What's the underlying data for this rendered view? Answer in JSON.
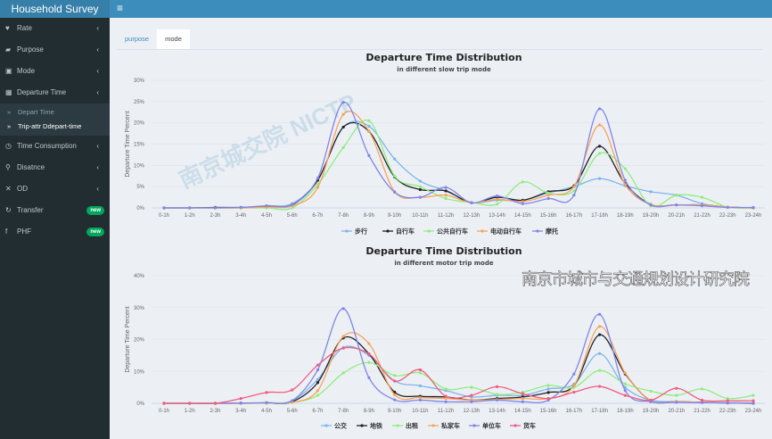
{
  "app": {
    "title": "Household Survey"
  },
  "sidebar": {
    "items": [
      {
        "label": "Rate",
        "icon": "heartbeat-icon",
        "glyph": "♥",
        "chevron": true
      },
      {
        "label": "Purpose",
        "icon": "briefcase-icon",
        "glyph": "▰",
        "chevron": true
      },
      {
        "label": "Mode",
        "icon": "bus-icon",
        "glyph": "▣",
        "chevron": true
      },
      {
        "label": "Departure Time",
        "icon": "calendar-icon",
        "glyph": "▦",
        "chevron": true,
        "expanded": true,
        "children": [
          {
            "label": "Depart Time",
            "active": false
          },
          {
            "label": "Trip-attr Ddepart-time",
            "active": true
          }
        ]
      },
      {
        "label": "Time Consumption",
        "icon": "clock-icon",
        "glyph": "◷",
        "chevron": true
      },
      {
        "label": "Disatnce",
        "icon": "map-marker-icon",
        "glyph": "⚲",
        "chevron": true
      },
      {
        "label": "OD",
        "icon": "arrows-icon",
        "glyph": "✕",
        "chevron": true
      },
      {
        "label": "Transfer",
        "icon": "refresh-icon",
        "glyph": "↻",
        "badge": "new"
      },
      {
        "label": "PHF",
        "icon": "facebook-icon",
        "glyph": "f",
        "badge": "new"
      }
    ]
  },
  "tabs": [
    {
      "label": "purpose",
      "active": false
    },
    {
      "label": "mode",
      "active": true
    }
  ],
  "watermarks": {
    "w1": "南京城交院 NICTP",
    "w2": "南京市城市与交通规划设计研究院"
  },
  "colors": {
    "blue": "#7cb5ec",
    "black": "#222222",
    "green": "#90ed7d",
    "orange": "#f7a35c",
    "purple": "#8085e9",
    "red": "#f15c80"
  },
  "chart_data": [
    {
      "type": "line",
      "title": "Departure Time Distribution",
      "subtitle": "in different slow trip mode",
      "ylabel": "Departure Time Percent",
      "ylim": [
        0,
        30
      ],
      "yticks": [
        "0%",
        "5%",
        "10%",
        "15%",
        "20%",
        "25%",
        "30%"
      ],
      "legend": "bottom",
      "categories": [
        "0-1h",
        "1-2h",
        "2-3h",
        "3-4h",
        "4-5h",
        "5-6h",
        "6-7h",
        "7-8h",
        "8-9h",
        "9-10h",
        "10-11h",
        "11-12h",
        "12-13h",
        "13-14h",
        "14-15h",
        "15-16h",
        "16-17h",
        "17-18h",
        "18-19h",
        "19-20h",
        "20-21h",
        "21-22h",
        "22-23h",
        "23-24h"
      ],
      "series": [
        {
          "name": "步行",
          "color": "#7cb5ec",
          "values": [
            0,
            0,
            0.1,
            0.1,
            0.5,
            1,
            6.5,
            19,
            19.2,
            11.5,
            6.3,
            4,
            1.3,
            1.8,
            1.8,
            3.5,
            5,
            6.9,
            5.2,
            3.8,
            3,
            1,
            0.2,
            0
          ]
        },
        {
          "name": "自行车",
          "color": "#222222",
          "values": [
            0,
            0,
            0.1,
            0.1,
            0.3,
            0.7,
            6.5,
            19,
            18,
            7.3,
            4.3,
            4,
            1.2,
            2.5,
            1.8,
            3.8,
            5.2,
            14.5,
            5.7,
            0.8,
            0.7,
            0.7,
            0.2,
            0
          ]
        },
        {
          "name": "公共自行车",
          "color": "#90ed7d",
          "values": [
            0,
            0,
            0,
            0,
            0,
            0,
            5.5,
            14.2,
            20.5,
            7.5,
            5,
            2.2,
            1.3,
            0.9,
            6.1,
            3.5,
            4,
            12.8,
            9.2,
            0.5,
            3,
            2.5,
            0.2,
            0
          ]
        },
        {
          "name": "电动自行车",
          "color": "#f7a35c",
          "values": [
            0,
            0,
            0,
            0,
            0.2,
            0.5,
            4.8,
            22,
            18,
            3.8,
            2.5,
            3,
            1.2,
            2,
            1.5,
            3,
            5,
            19.5,
            5.5,
            0.8,
            0.7,
            0.7,
            0.2,
            0
          ]
        },
        {
          "name": "摩托",
          "color": "#8085e9",
          "values": [
            0,
            0,
            0,
            0.1,
            0.5,
            0.8,
            7,
            24.8,
            12.3,
            3.7,
            2.5,
            4.8,
            1.2,
            2.8,
            1,
            2.2,
            3,
            23.3,
            6.5,
            0.7,
            0.7,
            0.5,
            0.1,
            0.1
          ]
        }
      ]
    },
    {
      "type": "line",
      "title": "Departure Time Distribution",
      "subtitle": "in different motor trip mode",
      "ylabel": "Departure Time Percent",
      "ylim": [
        0,
        40
      ],
      "yticks": [
        "0%",
        "10%",
        "20%",
        "30%",
        "40%"
      ],
      "legend": "bottom",
      "categories": [
        "0-1h",
        "1-2h",
        "2-3h",
        "3-4h",
        "4-5h",
        "5-6h",
        "6-7h",
        "7-8h",
        "8-9h",
        "9-10h",
        "10-11h",
        "11-12h",
        "12-13h",
        "13-14h",
        "14-15h",
        "15-16h",
        "16-17h",
        "17-18h",
        "18-19h",
        "19-20h",
        "20-21h",
        "21-22h",
        "22-23h",
        "23-24h"
      ],
      "series": [
        {
          "name": "公交",
          "color": "#7cb5ec",
          "values": [
            0,
            0,
            0,
            0.1,
            0.2,
            0.8,
            7.5,
            17.5,
            15,
            7,
            5.5,
            4,
            2,
            2.5,
            2.5,
            4.5,
            6,
            15.6,
            5,
            1,
            0.5,
            0.3,
            0.2,
            0.1
          ]
        },
        {
          "name": "地铁",
          "color": "#222222",
          "values": [
            0,
            0,
            0,
            0,
            0.1,
            0.5,
            6.5,
            20.5,
            15.5,
            3.5,
            2.2,
            2,
            1,
            1.5,
            2,
            3.4,
            5.5,
            21.5,
            9.2,
            0.8,
            0.5,
            0.3,
            0.1,
            0
          ]
        },
        {
          "name": "出租",
          "color": "#90ed7d",
          "values": [
            0,
            0,
            0,
            0,
            0.1,
            0.3,
            2.5,
            9.5,
            12.8,
            8.7,
            9.5,
            4.5,
            5,
            2.8,
            3.5,
            5.6,
            5,
            10.3,
            6.1,
            3.8,
            2.5,
            4.5,
            1.5,
            2.5
          ]
        },
        {
          "name": "私家车",
          "color": "#f7a35c",
          "values": [
            0,
            0,
            0,
            0,
            0.1,
            0.3,
            4,
            21,
            18.7,
            2.7,
            1.8,
            1.5,
            1,
            1.2,
            1.5,
            1.5,
            5.5,
            24.1,
            9.5,
            0.8,
            0.5,
            0.3,
            0.1,
            0
          ]
        },
        {
          "name": "单位车",
          "color": "#8085e9",
          "values": [
            0,
            0,
            0,
            0.1,
            0.2,
            0.8,
            10.5,
            29.7,
            8,
            1.1,
            1,
            0.5,
            0.5,
            1,
            0.5,
            1,
            9.2,
            27.9,
            4,
            0.5,
            0.3,
            0.2,
            0.1,
            0
          ]
        },
        {
          "name": "货车",
          "color": "#f15c80",
          "values": [
            0,
            0,
            0,
            1.5,
            3.4,
            4.2,
            12,
            17.3,
            15.5,
            7,
            10.5,
            2.2,
            2.5,
            5.2,
            3,
            1.5,
            3.5,
            5.3,
            2.5,
            1,
            4.7,
            1,
            0.8,
            0.8
          ]
        }
      ]
    }
  ]
}
